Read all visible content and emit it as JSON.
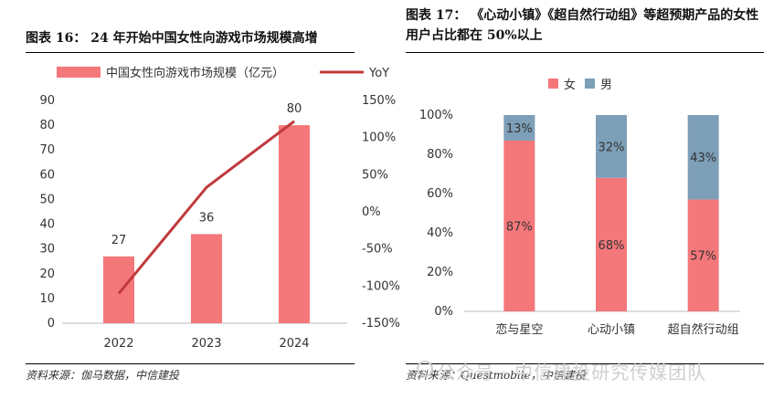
{
  "left_chart": {
    "title": "图表 16： 24 年开始中国女性向游戏市场规模高增",
    "source": "资料来源：伽马数据，中信建投"
  },
  "right_chart": {
    "title": "图表 17： 《心动小镇》《超自然行动组》等超预期产品的女性用户占比都在 50%以上",
    "source": "资料来源：Questmobile，中信建投"
  },
  "watermark": "公众号 · 中信建投研究传媒团队",
  "colors": {
    "female": "#f4777a",
    "male": "#7d9fb8",
    "bar": "#f4777a",
    "yoy": "#c0393b"
  },
  "chart_data": [
    {
      "type": "bar",
      "categories": [
        "2022",
        "2023",
        "2024"
      ],
      "series": [
        {
          "name": "中国女性向游戏市场规模（亿元）",
          "values": [
            27,
            36,
            80
          ],
          "axis": "left"
        },
        {
          "name": "YoY",
          "type": "line",
          "values": [
            -110,
            33,
            122
          ],
          "axis": "right"
        }
      ],
      "data_labels": [
        "27",
        "36",
        "80"
      ],
      "ylim": [
        0,
        90
      ],
      "y_ticks": [
        "0",
        "10",
        "20",
        "30",
        "40",
        "50",
        "60",
        "70",
        "80",
        "90"
      ],
      "y2lim": [
        -150,
        150
      ],
      "y2_ticks": [
        "-150%",
        "-100%",
        "-50%",
        "0%",
        "50%",
        "100%",
        "150%"
      ],
      "legend": "top"
    },
    {
      "type": "bar",
      "stacked": true,
      "categories": [
        "恋与星空",
        "心动小镇",
        "超自然行动组"
      ],
      "series": [
        {
          "name": "女",
          "values": [
            87,
            68,
            57
          ],
          "labels": [
            "87%",
            "68%",
            "57%"
          ]
        },
        {
          "name": "男",
          "values": [
            13,
            32,
            43
          ],
          "labels": [
            "13%",
            "32%",
            "43%"
          ]
        }
      ],
      "ylim": [
        0,
        100
      ],
      "y_ticks": [
        "0%",
        "20%",
        "40%",
        "60%",
        "80%",
        "100%"
      ],
      "legend": "top-left"
    }
  ]
}
